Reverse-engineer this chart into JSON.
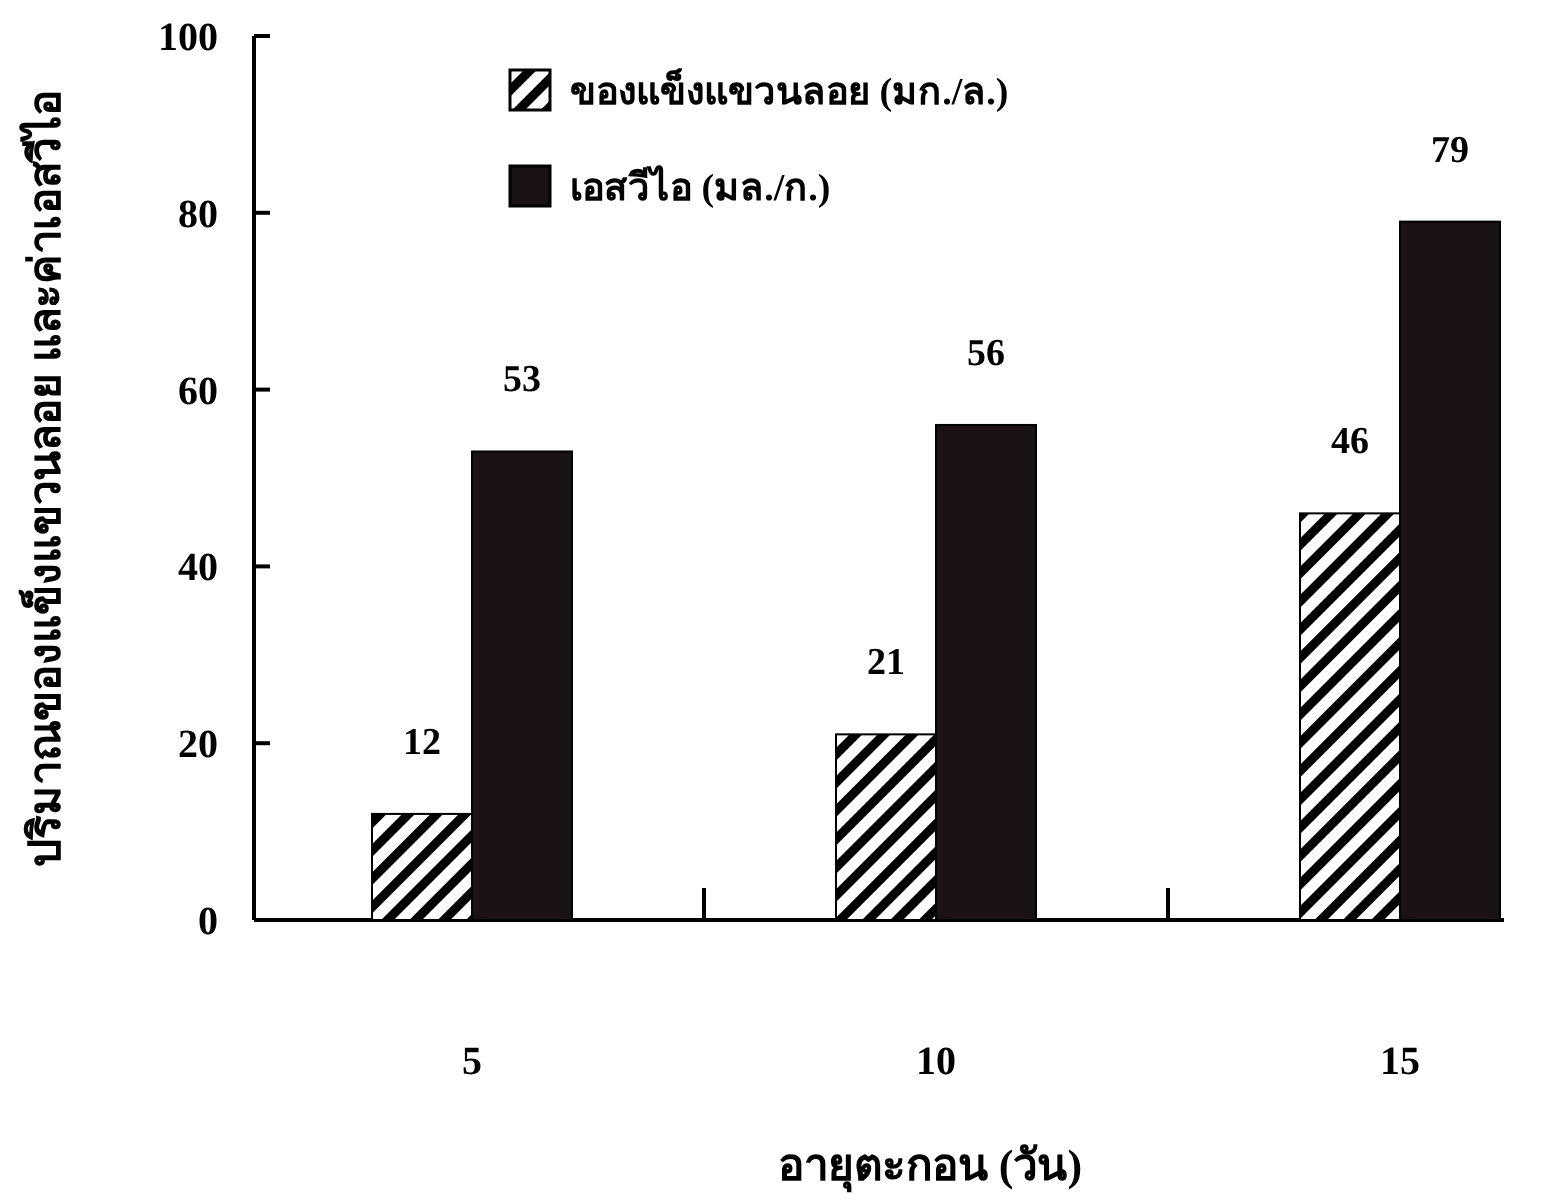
{
  "chart_data": {
    "type": "bar",
    "xlabel": "อายุตะกอน (วัน)",
    "ylabel": "ปริมาณของแข็งแขวนลอย และค่าเอสวีไอ",
    "categories": [
      "5",
      "10",
      "15"
    ],
    "series": [
      {
        "name": "ของแข็งแขวนลอย (มก./ล.)",
        "color": "#000000",
        "values": [
          12,
          21,
          46
        ]
      },
      {
        "name": "เอสวีไอ (มล./ก.)",
        "color": "#1a1214",
        "values": [
          53,
          56,
          79
        ]
      }
    ],
    "ylim": [
      0,
      100
    ],
    "yticks": [
      0,
      20,
      40,
      60,
      80,
      100
    ],
    "data_labels": true,
    "legend": "top left"
  }
}
